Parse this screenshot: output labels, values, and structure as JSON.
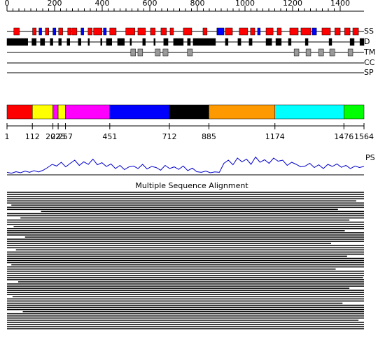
{
  "ruler": {
    "xlim": [
      0,
      1500
    ],
    "ticks": [
      0,
      200,
      400,
      600,
      800,
      1000,
      1200,
      1400
    ]
  },
  "tracks": {
    "ss": {
      "label": "SS",
      "helix_color": "#ff0000",
      "strand_color": "#0000ff",
      "helices": [
        [
          31,
          55
        ],
        [
          113,
          129
        ],
        [
          169,
          184
        ],
        [
          227,
          245
        ],
        [
          267,
          282
        ],
        [
          285,
          307
        ],
        [
          356,
          374
        ],
        [
          380,
          417
        ],
        [
          451,
          479
        ],
        [
          521,
          561
        ],
        [
          574,
          607
        ],
        [
          629,
          650
        ],
        [
          675,
          699
        ],
        [
          715,
          730
        ],
        [
          773,
          810
        ],
        [
          859,
          877
        ],
        [
          957,
          988
        ],
        [
          1018,
          1055
        ],
        [
          1067,
          1086
        ],
        [
          1135,
          1166
        ],
        [
          1184,
          1202
        ],
        [
          1239,
          1276
        ],
        [
          1288,
          1331
        ],
        [
          1380,
          1417
        ],
        [
          1436,
          1460
        ],
        [
          1479,
          1503
        ],
        [
          1515,
          1540
        ]
      ],
      "strands": [
        [
          141,
          153
        ],
        [
          202,
          215
        ],
        [
          325,
          337
        ],
        [
          423,
          436
        ],
        [
          920,
          951
        ],
        [
          1098,
          1110
        ],
        [
          1337,
          1356
        ]
      ]
    },
    "d": {
      "label": "D",
      "color": "#000000",
      "segments": [
        [
          1,
          92
        ],
        [
          110,
          129
        ],
        [
          147,
          166
        ],
        [
          190,
          202
        ],
        [
          227,
          239
        ],
        [
          264,
          276
        ],
        [
          313,
          325
        ],
        [
          356,
          362
        ],
        [
          411,
          417
        ],
        [
          436,
          460
        ],
        [
          485,
          515
        ],
        [
          540,
          546
        ],
        [
          595,
          607
        ],
        [
          644,
          650
        ],
        [
          687,
          706
        ],
        [
          730,
          773
        ],
        [
          791,
          804
        ],
        [
          816,
          914
        ],
        [
          957,
          969
        ],
        [
          1012,
          1025
        ],
        [
          1061,
          1074
        ],
        [
          1135,
          1160
        ],
        [
          1178,
          1202
        ],
        [
          1233,
          1245
        ],
        [
          1307,
          1319
        ],
        [
          1411,
          1423
        ],
        [
          1503,
          1521
        ],
        [
          1546,
          1564
        ]
      ]
    },
    "tm": {
      "label": "TM",
      "color": "#999999",
      "segments": [
        [
          543,
          564
        ],
        [
          574,
          595
        ],
        [
          650,
          672
        ],
        [
          684,
          706
        ],
        [
          791,
          813
        ],
        [
          1258,
          1279
        ],
        [
          1310,
          1331
        ],
        [
          1365,
          1387
        ],
        [
          1414,
          1436
        ],
        [
          1494,
          1515
        ]
      ]
    },
    "cc": {
      "label": "CC",
      "segments": []
    },
    "sp": {
      "label": "SP",
      "segments": []
    }
  },
  "domains": {
    "boundaries": [
      1,
      112,
      202,
      225,
      257,
      451,
      712,
      885,
      1174,
      1476,
      1564
    ],
    "colors": [
      "#ff0000",
      "#ffff00",
      "#ff00ff",
      "#ffff00",
      "#ff00ff",
      "#0000ff",
      "#000000",
      "#ff9900",
      "#00ffff",
      "#00ff00"
    ]
  },
  "ps": {
    "label": "PS",
    "color": "#0000cc",
    "ylim": [
      0,
      1
    ],
    "values": [
      0.12,
      0.08,
      0.15,
      0.1,
      0.18,
      0.12,
      0.2,
      0.14,
      0.22,
      0.35,
      0.5,
      0.42,
      0.6,
      0.38,
      0.55,
      0.7,
      0.45,
      0.62,
      0.5,
      0.75,
      0.48,
      0.58,
      0.4,
      0.52,
      0.3,
      0.45,
      0.25,
      0.38,
      0.42,
      0.3,
      0.5,
      0.28,
      0.4,
      0.35,
      0.22,
      0.45,
      0.3,
      0.38,
      0.26,
      0.42,
      0.2,
      0.32,
      0.15,
      0.12,
      0.18,
      0.1,
      0.14,
      0.12,
      0.55,
      0.7,
      0.48,
      0.8,
      0.62,
      0.75,
      0.5,
      0.85,
      0.6,
      0.72,
      0.55,
      0.8,
      0.65,
      0.7,
      0.45,
      0.6,
      0.5,
      0.38,
      0.42,
      0.55,
      0.35,
      0.48,
      0.3,
      0.5,
      0.4,
      0.52,
      0.36,
      0.45,
      0.3,
      0.42,
      0.35,
      0.4
    ]
  },
  "msa": {
    "title": "Multiple Sequence Alignment",
    "rows": [
      [
        1,
        1564
      ],
      [
        1,
        1564
      ],
      [
        1,
        1564
      ],
      [
        1,
        1564
      ],
      [
        1,
        1530
      ],
      [
        1,
        1564
      ],
      [
        20,
        1564
      ],
      [
        1,
        1564
      ],
      [
        1,
        1450
      ],
      [
        150,
        1564
      ],
      [
        1,
        1564
      ],
      [
        1,
        1564
      ],
      [
        60,
        1564
      ],
      [
        1,
        1500
      ],
      [
        1,
        1564
      ],
      [
        1,
        1564
      ],
      [
        30,
        1564
      ],
      [
        1,
        1564
      ],
      [
        1,
        1480
      ],
      [
        1,
        1564
      ],
      [
        1,
        1564
      ],
      [
        80,
        1564
      ],
      [
        1,
        1564
      ],
      [
        1,
        1564
      ],
      [
        1,
        1420
      ],
      [
        1,
        1564
      ],
      [
        1,
        1564
      ],
      [
        40,
        1564
      ],
      [
        1,
        1564
      ],
      [
        1,
        1564
      ],
      [
        1,
        1490
      ],
      [
        1,
        1564
      ],
      [
        1,
        1564
      ],
      [
        1,
        1564
      ],
      [
        20,
        1564
      ],
      [
        1,
        1564
      ],
      [
        1,
        1440
      ],
      [
        1,
        1564
      ],
      [
        1,
        1564
      ],
      [
        1,
        1564
      ],
      [
        1,
        1560
      ],
      [
        1,
        1564
      ],
      [
        50,
        1564
      ],
      [
        1,
        1564
      ],
      [
        1,
        1564
      ],
      [
        1,
        1500
      ],
      [
        1,
        1564
      ],
      [
        1,
        1564
      ],
      [
        1,
        1564
      ],
      [
        25,
        1564
      ],
      [
        1,
        1564
      ],
      [
        1,
        1564
      ],
      [
        1,
        1470
      ],
      [
        1,
        1564
      ],
      [
        1,
        1564
      ],
      [
        1,
        1564
      ],
      [
        70,
        1564
      ],
      [
        1,
        1564
      ],
      [
        1,
        1564
      ],
      [
        1,
        1564
      ],
      [
        1,
        1540
      ],
      [
        1,
        1564
      ],
      [
        1,
        1564
      ],
      [
        1,
        1564
      ],
      [
        1,
        1564
      ]
    ]
  }
}
